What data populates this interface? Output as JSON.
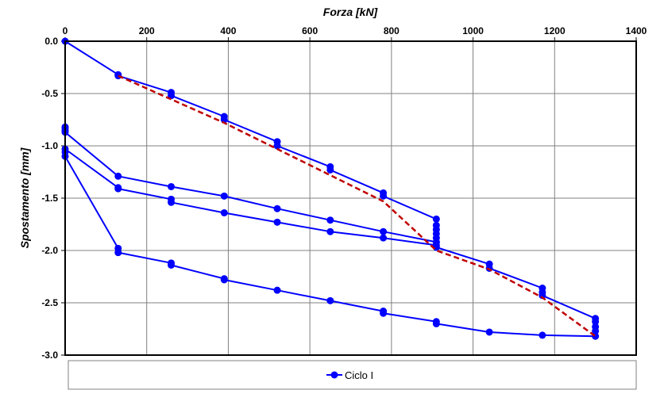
{
  "chart_data": {
    "type": "line",
    "xlabel": "Forza [kN]",
    "ylabel": "Spostamento [mm]",
    "xlim": [
      0,
      1400
    ],
    "ylim": [
      -3.0,
      0.0
    ],
    "x_ticks": [
      "0",
      "200",
      "400",
      "600",
      "800",
      "1000",
      "1200",
      "1400"
    ],
    "y_ticks": [
      "0.0",
      "-0.5",
      "-1.0",
      "-1.5",
      "-2.0",
      "-2.5",
      "-3.0"
    ],
    "x_axis_position": "top",
    "grid": true,
    "legend_position": "bottom",
    "series": [
      {
        "name": "Ciclo I",
        "color": "#0000ff",
        "marker": "circle",
        "x": [
          0,
          130,
          130,
          260,
          260,
          390,
          390,
          520,
          520,
          650,
          650,
          780,
          780,
          910,
          910,
          910,
          910,
          910,
          910,
          910,
          1040,
          1040,
          1170,
          1170,
          1170,
          1300,
          1300,
          1300,
          1300,
          1300,
          1170,
          1040,
          910,
          910,
          780,
          780,
          650,
          520,
          390,
          390,
          260,
          260,
          130,
          130,
          0,
          0,
          0,
          130,
          130,
          260,
          260,
          390,
          520,
          650,
          780,
          910,
          910,
          780,
          650,
          520,
          390,
          260,
          130,
          0,
          0,
          0,
          0,
          0
        ],
        "y": [
          0.0,
          -0.32,
          -0.33,
          -0.49,
          -0.52,
          -0.72,
          -0.75,
          -0.96,
          -1.0,
          -1.2,
          -1.23,
          -1.45,
          -1.48,
          -1.7,
          -1.76,
          -1.8,
          -1.84,
          -1.88,
          -1.92,
          -1.97,
          -2.13,
          -2.17,
          -2.36,
          -2.4,
          -2.43,
          -2.65,
          -2.68,
          -2.73,
          -2.77,
          -2.82,
          -2.81,
          -2.78,
          -2.7,
          -2.68,
          -2.6,
          -2.58,
          -2.48,
          -2.38,
          -2.28,
          -2.27,
          -2.14,
          -2.12,
          -2.02,
          -1.98,
          -1.1,
          -1.06,
          -1.03,
          -1.4,
          -1.41,
          -1.51,
          -1.54,
          -1.64,
          -1.73,
          -1.82,
          -1.88,
          -1.95,
          -1.92,
          -1.82,
          -1.71,
          -1.6,
          -1.48,
          -1.39,
          -1.29,
          -0.87,
          -0.85,
          -0.83,
          -0.82,
          -0.86
        ]
      },
      {
        "color": "#c00000",
        "style": "dashed",
        "x": [
          130,
          390,
          520,
          780,
          910,
          1040,
          1170,
          1300
        ],
        "y": [
          -0.33,
          -0.78,
          -1.03,
          -1.53,
          -2.0,
          -2.18,
          -2.45,
          -2.82
        ]
      }
    ]
  }
}
